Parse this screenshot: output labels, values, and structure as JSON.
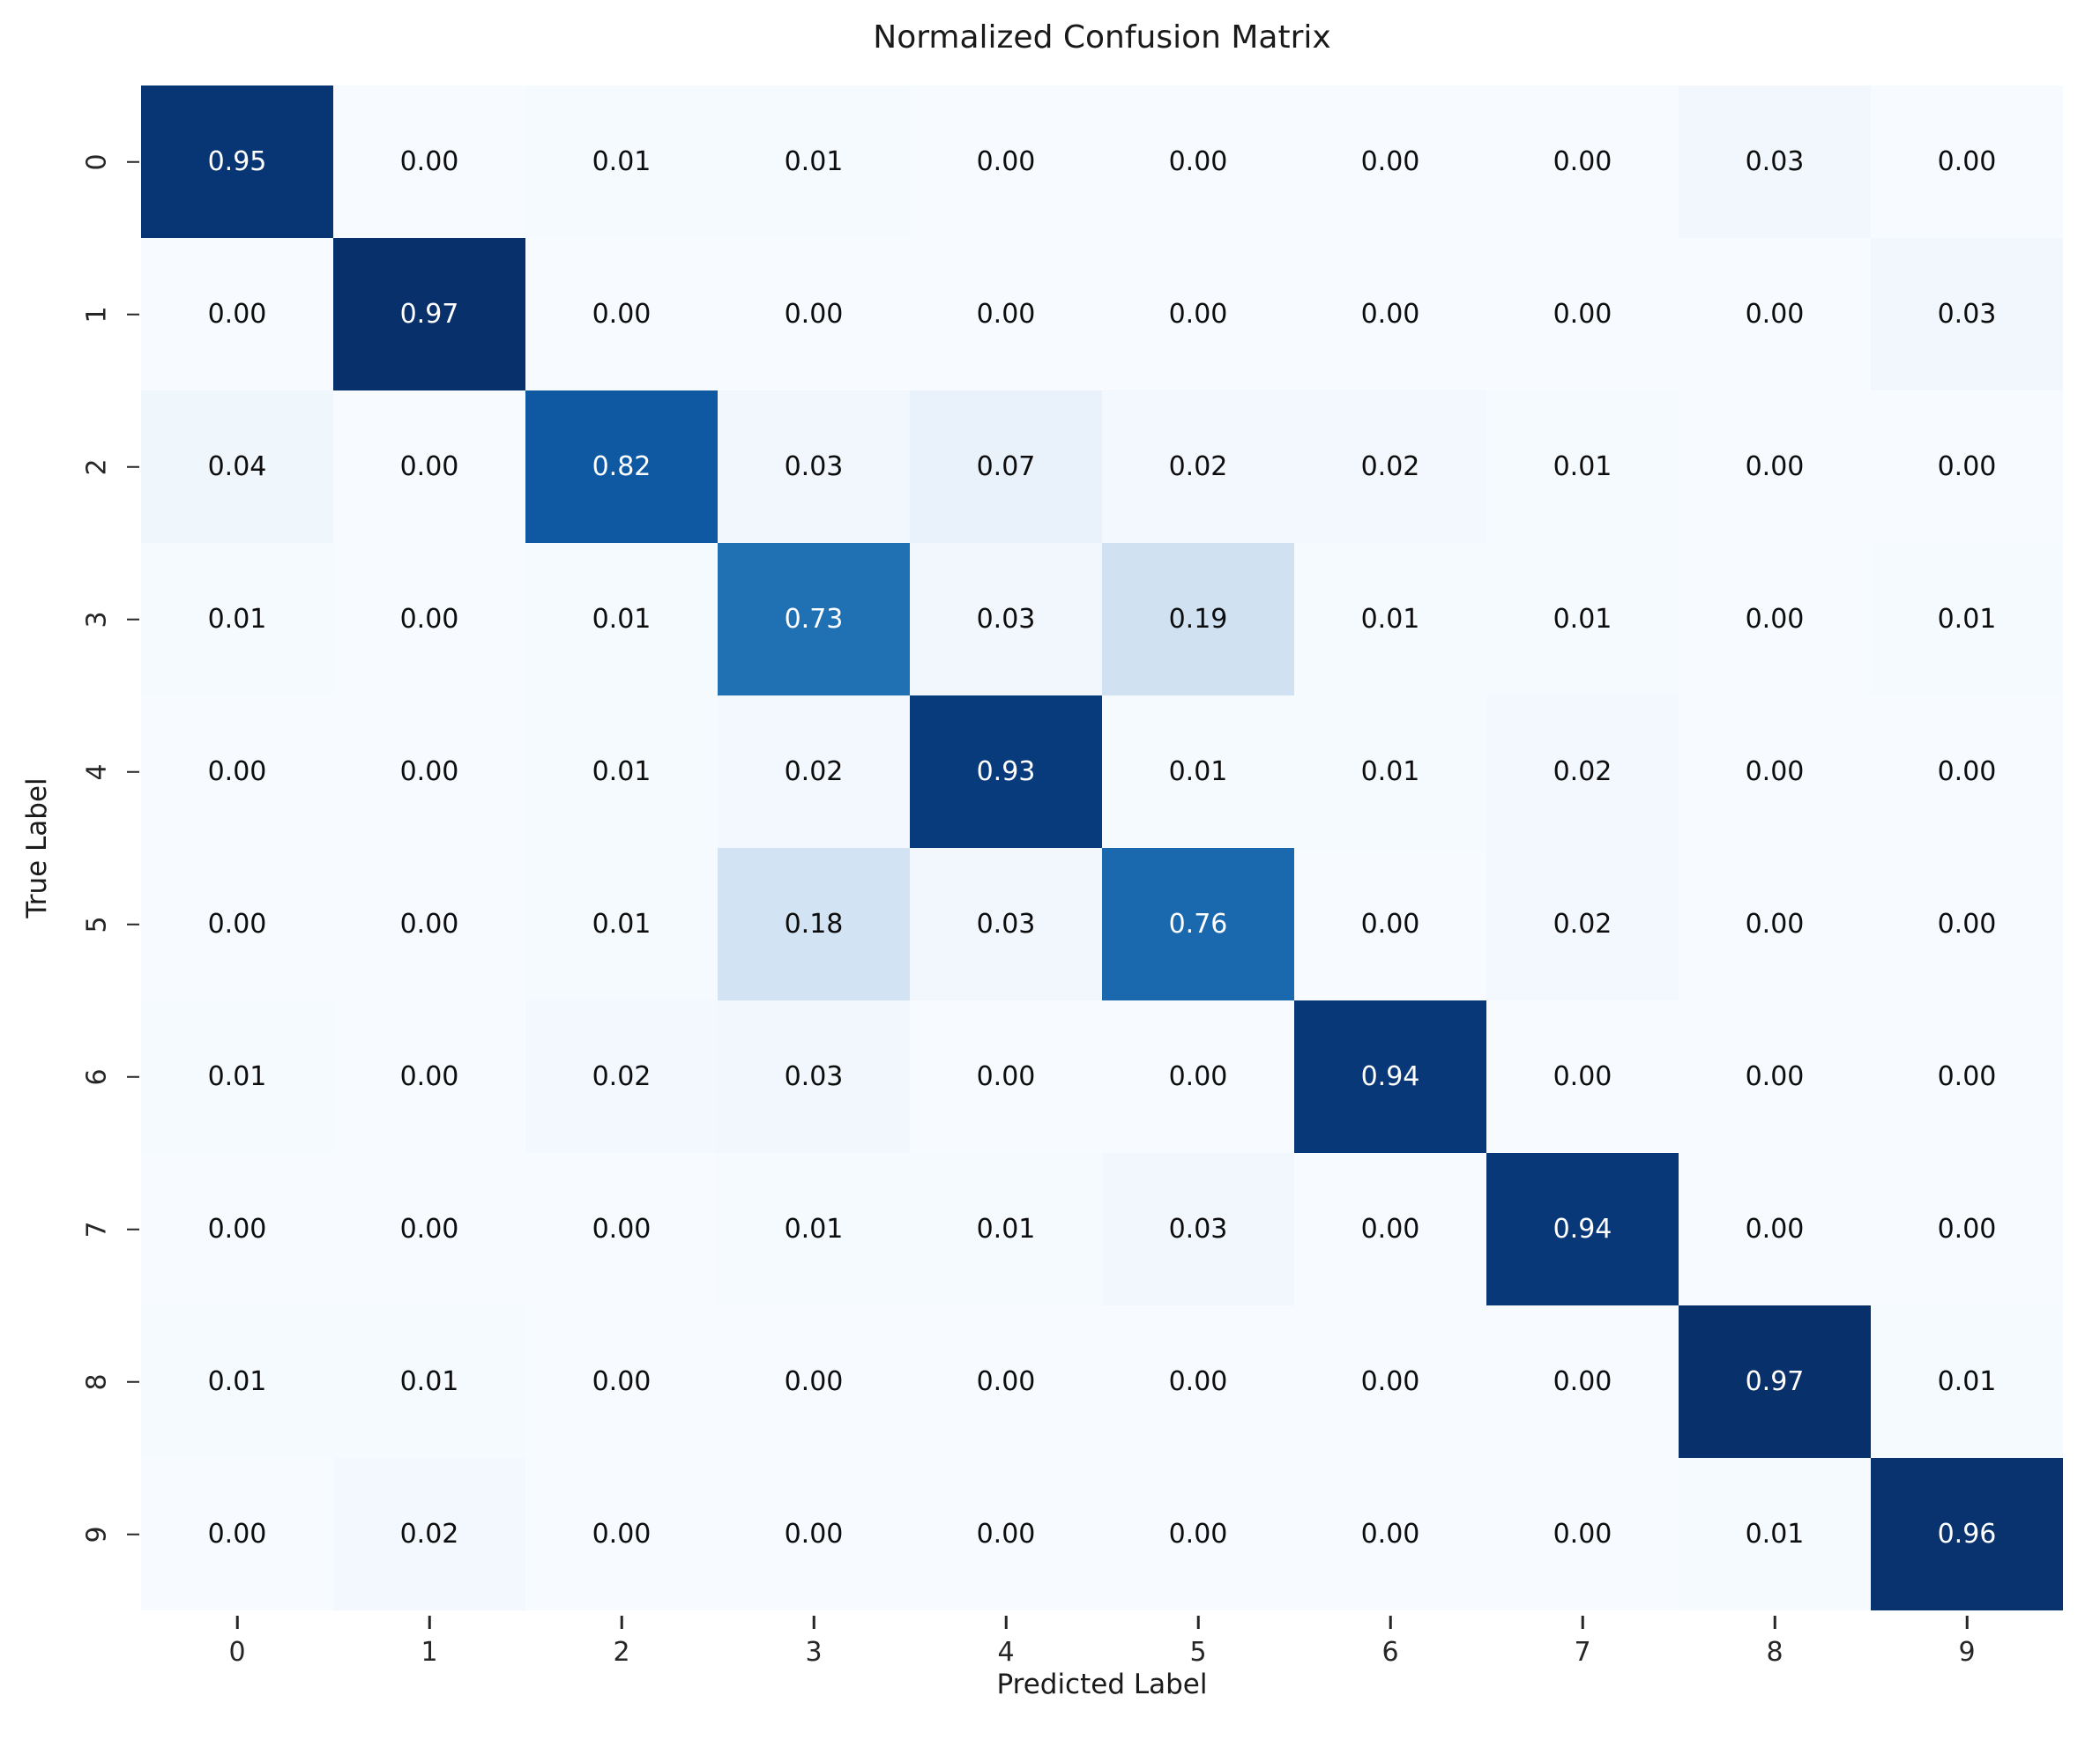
{
  "chart_data": {
    "type": "heatmap",
    "title": "Normalized Confusion Matrix",
    "xlabel": "Predicted Label",
    "ylabel": "True Label",
    "x_ticklabels": [
      "0",
      "1",
      "2",
      "3",
      "4",
      "5",
      "6",
      "7",
      "8",
      "9"
    ],
    "y_ticklabels": [
      "0",
      "1",
      "2",
      "3",
      "4",
      "5",
      "6",
      "7",
      "8",
      "9"
    ],
    "colormap": "Blues",
    "vmin": 0.0,
    "vmax": 0.97,
    "value_format": "0.00",
    "grid": false,
    "legend": "none",
    "matrix": [
      [
        0.95,
        0.0,
        0.01,
        0.01,
        0.0,
        0.0,
        0.0,
        0.0,
        0.03,
        0.0
      ],
      [
        0.0,
        0.97,
        0.0,
        0.0,
        0.0,
        0.0,
        0.0,
        0.0,
        0.0,
        0.03
      ],
      [
        0.04,
        0.0,
        0.82,
        0.03,
        0.07,
        0.02,
        0.02,
        0.01,
        0.0,
        0.0
      ],
      [
        0.01,
        0.0,
        0.01,
        0.73,
        0.03,
        0.19,
        0.01,
        0.01,
        0.0,
        0.01
      ],
      [
        0.0,
        0.0,
        0.01,
        0.02,
        0.93,
        0.01,
        0.01,
        0.02,
        0.0,
        0.0
      ],
      [
        0.0,
        0.0,
        0.01,
        0.18,
        0.03,
        0.76,
        0.0,
        0.02,
        0.0,
        0.0
      ],
      [
        0.01,
        0.0,
        0.02,
        0.03,
        0.0,
        0.0,
        0.94,
        0.0,
        0.0,
        0.0
      ],
      [
        0.0,
        0.0,
        0.0,
        0.01,
        0.01,
        0.03,
        0.0,
        0.94,
        0.0,
        0.0
      ],
      [
        0.01,
        0.01,
        0.0,
        0.0,
        0.0,
        0.0,
        0.0,
        0.0,
        0.97,
        0.01
      ],
      [
        0.0,
        0.02,
        0.0,
        0.0,
        0.0,
        0.0,
        0.0,
        0.0,
        0.01,
        0.96
      ]
    ]
  },
  "colors": {
    "cmap_low": "#f7fbff",
    "cmap_high": "#08306b",
    "cell_text_dark": "#0d0d0d",
    "cell_text_light": "#ffffff",
    "axis_text": "#262626",
    "title_text": "#1a1a1a"
  }
}
